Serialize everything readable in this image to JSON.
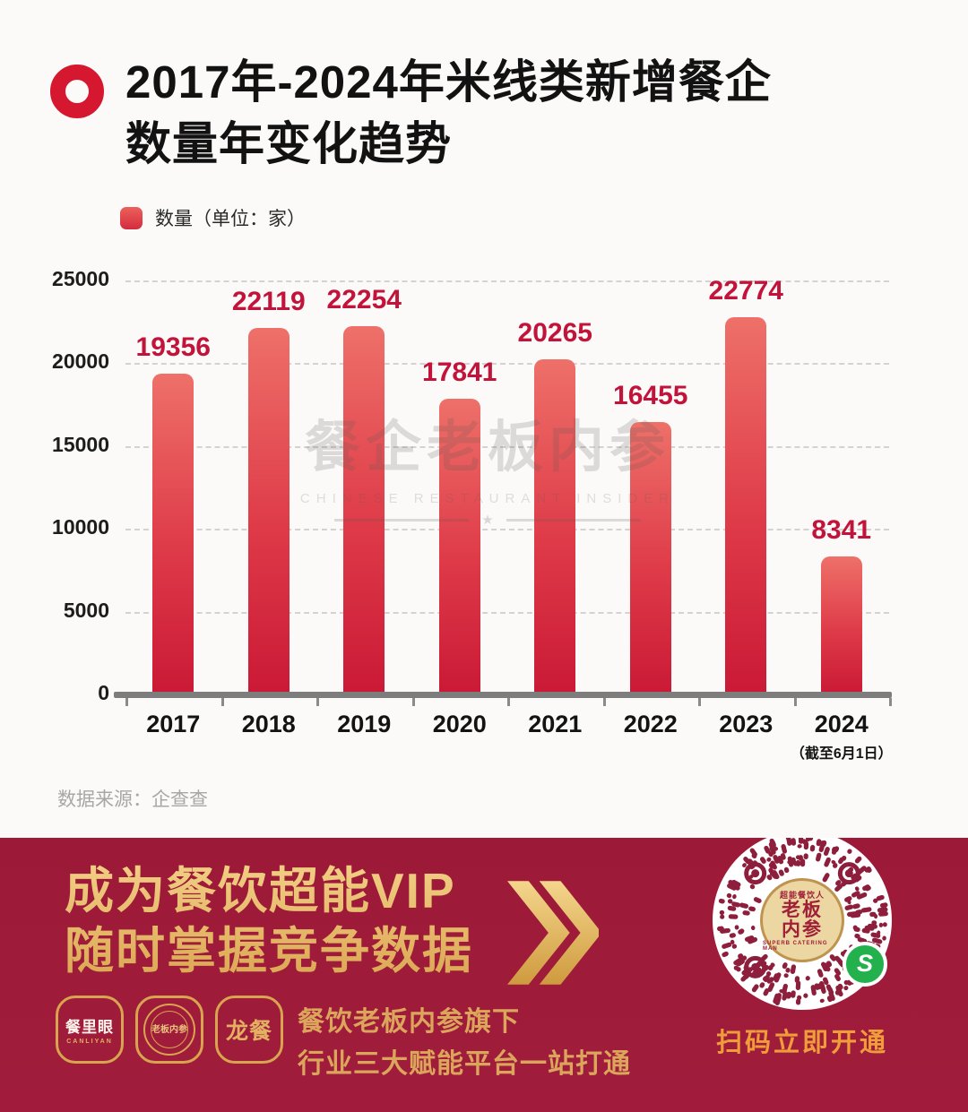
{
  "header": {
    "title_line1": "2017年-2024年米线类新增餐企",
    "title_line2": "数量年变化趋势"
  },
  "legend": {
    "label": "数量（单位：家）",
    "swatch_color": "#d42b3e"
  },
  "chart_data": {
    "type": "bar",
    "title": "2017年-2024年米线类新增餐企数量年变化趋势",
    "series_name": "数量（单位：家）",
    "categories": [
      "2017",
      "2018",
      "2019",
      "2020",
      "2021",
      "2022",
      "2023",
      "2024"
    ],
    "values": [
      19356,
      22119,
      22254,
      17841,
      20265,
      16455,
      22774,
      8341
    ],
    "x_note": {
      "category": "2024",
      "note": "（截至6月1日）"
    },
    "ylim": [
      0,
      25000
    ],
    "yticks": [
      25000,
      20000,
      15000,
      10000,
      5000,
      0
    ],
    "grid": "horizontal-dashed",
    "legend_position": "top-left",
    "bar_color_top": "#ee7069",
    "bar_color_bottom": "#ca1936",
    "value_label_color": "#c2143a"
  },
  "watermark": {
    "cjk": "餐企老板内参",
    "latin": "CHINESE RESTAURANT INSIDER",
    "star": "★"
  },
  "source": {
    "label": "数据来源：企查查"
  },
  "banner": {
    "bg_color": "#a11c3c",
    "gold_color": "#dca55c",
    "headline_line1": "成为餐饮超能VIP",
    "headline_line2": "随时掌握竞争数据",
    "icons": [
      {
        "text": "餐里眼",
        "subtext": "CANLIYAN"
      },
      {
        "text": "老板内参"
      },
      {
        "text": "龙餐"
      }
    ],
    "subline1": "餐饮老板内参旗下",
    "subline2": "行业三大赋能平台一站打通",
    "qr": {
      "seal_top": "超能餐饮人",
      "seal_center_line1": "老板",
      "seal_center_line2": "内参",
      "seal_bottom": "SUPERB CATERING MAN",
      "scan_text": "扫码立即开通",
      "badge_letter": "S",
      "qr_dot_color": "#8e1f3c",
      "badge_color": "#23b14d"
    }
  }
}
